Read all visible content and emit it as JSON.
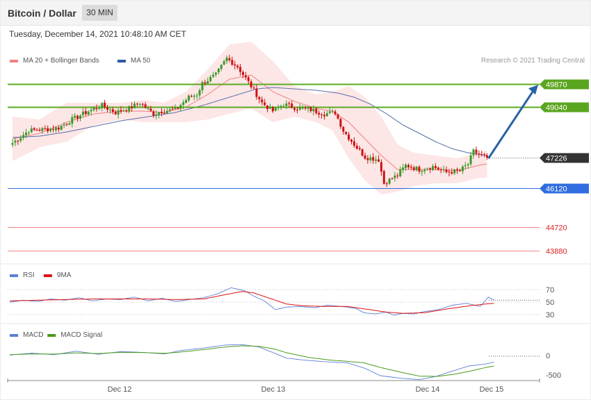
{
  "header": {
    "title": "Bitcoin / Dollar",
    "timeframe": "30 MIN",
    "datetime": "Tuesday, December 14, 2021 10:48:10 AM CET"
  },
  "copyright": "Research © 2021 Trading Central",
  "colors": {
    "up": "#3a9a2a",
    "down": "#cc1111",
    "ma20": "#f08080",
    "ma50": "#5a6ea8",
    "band_fill": "#fde0e0",
    "resistance": "#5aaa1e",
    "current": "#333333",
    "support": "#2f6de0",
    "support_red": "#ee5555",
    "arrow": "#2a62a6",
    "rsi": "#5b7fd6",
    "rsi_ma": "#dd1111",
    "macd": "#5b7fd6",
    "macd_signal": "#4a9a1a"
  },
  "chart_data": [
    {
      "type": "candlestick",
      "legend": [
        {
          "name": "MA 20 + Bollinger Bands",
          "color": "#f08080"
        },
        {
          "name": "MA 50",
          "color": "#2f5aa0"
        }
      ],
      "x_labels": [
        "Dec 12",
        "Dec 13",
        "Dec 14",
        "Dec 15"
      ],
      "ylim": [
        43300,
        51500
      ],
      "levels": [
        {
          "value": 49870,
          "label": "49870",
          "kind": "resistance"
        },
        {
          "value": 49040,
          "label": "49040",
          "kind": "resistance"
        },
        {
          "value": 47226,
          "label": "47226",
          "kind": "current"
        },
        {
          "value": 46120,
          "label": "46120",
          "kind": "support"
        },
        {
          "value": 44720,
          "label": "44720",
          "kind": "support_red"
        },
        {
          "value": 43880,
          "label": "43880",
          "kind": "support_red"
        }
      ],
      "close_anchors": [
        [
          0,
          47750
        ],
        [
          6,
          48200
        ],
        [
          13,
          48250
        ],
        [
          17,
          48300
        ],
        [
          22,
          48600
        ],
        [
          28,
          48900
        ],
        [
          33,
          49100
        ],
        [
          38,
          48850
        ],
        [
          43,
          49000
        ],
        [
          47,
          49200
        ],
        [
          52,
          48800
        ],
        [
          55,
          48900
        ],
        [
          60,
          48950
        ],
        [
          65,
          49400
        ],
        [
          68,
          49500
        ],
        [
          70,
          49900
        ],
        [
          75,
          50200
        ],
        [
          79,
          50800
        ],
        [
          83,
          50500
        ],
        [
          88,
          49800
        ],
        [
          92,
          49200
        ],
        [
          96,
          48900
        ],
        [
          100,
          49150
        ],
        [
          105,
          49000
        ],
        [
          110,
          48950
        ],
        [
          115,
          48800
        ],
        [
          119,
          48850
        ],
        [
          122,
          48200
        ],
        [
          126,
          47700
        ],
        [
          130,
          47250
        ],
        [
          135,
          47150
        ],
        [
          137,
          46300
        ],
        [
          142,
          46600
        ],
        [
          145,
          46950
        ],
        [
          150,
          46800
        ],
        [
          155,
          46900
        ],
        [
          160,
          46700
        ],
        [
          165,
          46750
        ],
        [
          168,
          47000
        ],
        [
          170,
          47450
        ],
        [
          173,
          47300
        ],
        [
          175,
          47226
        ]
      ],
      "bands_ma20": [
        [
          0,
          47900,
          47100,
          48700
        ],
        [
          10,
          48100,
          47600,
          48600
        ],
        [
          20,
          48500,
          47800,
          49200
        ],
        [
          30,
          48800,
          48400,
          49200
        ],
        [
          40,
          48900,
          48600,
          49200
        ],
        [
          48,
          48900,
          48500,
          49300
        ],
        [
          56,
          48850,
          48500,
          49200
        ],
        [
          64,
          49050,
          48500,
          49600
        ],
        [
          72,
          49500,
          48600,
          50400
        ],
        [
          80,
          50050,
          48800,
          51300
        ],
        [
          88,
          50200,
          49000,
          51400
        ],
        [
          96,
          49600,
          48500,
          50700
        ],
        [
          104,
          49250,
          48700,
          49800
        ],
        [
          112,
          49000,
          48500,
          49500
        ],
        [
          118,
          48900,
          48200,
          49600
        ],
        [
          124,
          48500,
          47200,
          49800
        ],
        [
          130,
          47900,
          46400,
          49400
        ],
        [
          136,
          47300,
          45900,
          48700
        ],
        [
          142,
          46800,
          46000,
          47700
        ],
        [
          148,
          46800,
          46200,
          47400
        ],
        [
          156,
          46800,
          46300,
          47300
        ],
        [
          164,
          46750,
          46300,
          47200
        ],
        [
          172,
          46950,
          46500,
          47400
        ],
        [
          175,
          47000,
          46500,
          47500
        ]
      ],
      "ma50": [
        [
          0,
          47950
        ],
        [
          10,
          48000
        ],
        [
          20,
          48150
        ],
        [
          30,
          48350
        ],
        [
          40,
          48550
        ],
        [
          50,
          48700
        ],
        [
          60,
          48850
        ],
        [
          70,
          49100
        ],
        [
          80,
          49400
        ],
        [
          90,
          49700
        ],
        [
          96,
          49750
        ],
        [
          104,
          49700
        ],
        [
          112,
          49650
        ],
        [
          120,
          49550
        ],
        [
          126,
          49400
        ],
        [
          132,
          49150
        ],
        [
          138,
          48800
        ],
        [
          144,
          48400
        ],
        [
          150,
          48100
        ],
        [
          156,
          47800
        ],
        [
          162,
          47550
        ],
        [
          168,
          47400
        ],
        [
          175,
          47300
        ]
      ],
      "forecast_arrow": {
        "from": [
          175,
          47200
        ],
        "to": [
          190,
          49870
        ]
      }
    },
    {
      "type": "line",
      "name": "RSI",
      "legend": [
        {
          "name": "RSI",
          "color": "#5b7fd6"
        },
        {
          "name": "9MA",
          "color": "#dd1111"
        }
      ],
      "y_ticks": [
        70,
        50,
        30
      ],
      "ylim": [
        20,
        80
      ],
      "rsi": [
        [
          0,
          50
        ],
        [
          5,
          53
        ],
        [
          10,
          51
        ],
        [
          15,
          55
        ],
        [
          20,
          53
        ],
        [
          25,
          57
        ],
        [
          30,
          52
        ],
        [
          35,
          55
        ],
        [
          40,
          54
        ],
        [
          45,
          58
        ],
        [
          50,
          52
        ],
        [
          55,
          56
        ],
        [
          60,
          51
        ],
        [
          65,
          54
        ],
        [
          70,
          57
        ],
        [
          75,
          63
        ],
        [
          80,
          73
        ],
        [
          85,
          68
        ],
        [
          88,
          60
        ],
        [
          92,
          52
        ],
        [
          96,
          38
        ],
        [
          100,
          42
        ],
        [
          105,
          43
        ],
        [
          110,
          41
        ],
        [
          115,
          45
        ],
        [
          120,
          43
        ],
        [
          125,
          40
        ],
        [
          128,
          33
        ],
        [
          132,
          31
        ],
        [
          136,
          34
        ],
        [
          139,
          29
        ],
        [
          142,
          32
        ],
        [
          146,
          31
        ],
        [
          150,
          35
        ],
        [
          155,
          38
        ],
        [
          160,
          45
        ],
        [
          165,
          48
        ],
        [
          170,
          43
        ],
        [
          173,
          58
        ],
        [
          175,
          53
        ]
      ],
      "ma9": [
        [
          0,
          52
        ],
        [
          10,
          53
        ],
        [
          20,
          54
        ],
        [
          30,
          55
        ],
        [
          40,
          55
        ],
        [
          50,
          55
        ],
        [
          60,
          54
        ],
        [
          70,
          55
        ],
        [
          78,
          62
        ],
        [
          84,
          67
        ],
        [
          88,
          65
        ],
        [
          94,
          56
        ],
        [
          100,
          47
        ],
        [
          106,
          44
        ],
        [
          114,
          43
        ],
        [
          122,
          43
        ],
        [
          130,
          38
        ],
        [
          136,
          34
        ],
        [
          142,
          32
        ],
        [
          150,
          33
        ],
        [
          158,
          39
        ],
        [
          166,
          44
        ],
        [
          172,
          47
        ],
        [
          175,
          48
        ]
      ]
    },
    {
      "type": "line",
      "name": "MACD",
      "legend": [
        {
          "name": "MACD",
          "color": "#5b7fd6"
        },
        {
          "name": "MACD Signal",
          "color": "#4a9a1a"
        }
      ],
      "y_ticks": [
        0,
        -500
      ],
      "ylim": [
        -650,
        450
      ],
      "macd": [
        [
          0,
          30
        ],
        [
          8,
          80
        ],
        [
          16,
          40
        ],
        [
          24,
          130
        ],
        [
          32,
          50
        ],
        [
          40,
          120
        ],
        [
          48,
          100
        ],
        [
          56,
          60
        ],
        [
          62,
          150
        ],
        [
          70,
          210
        ],
        [
          78,
          290
        ],
        [
          84,
          300
        ],
        [
          90,
          240
        ],
        [
          96,
          70
        ],
        [
          100,
          -50
        ],
        [
          108,
          -110
        ],
        [
          116,
          -150
        ],
        [
          122,
          -170
        ],
        [
          128,
          -300
        ],
        [
          134,
          -500
        ],
        [
          142,
          -570
        ],
        [
          148,
          -600
        ],
        [
          154,
          -520
        ],
        [
          160,
          -380
        ],
        [
          166,
          -250
        ],
        [
          172,
          -200
        ],
        [
          175,
          -150
        ]
      ],
      "signal": [
        [
          0,
          40
        ],
        [
          8,
          60
        ],
        [
          16,
          55
        ],
        [
          24,
          85
        ],
        [
          32,
          70
        ],
        [
          40,
          100
        ],
        [
          48,
          95
        ],
        [
          56,
          75
        ],
        [
          62,
          110
        ],
        [
          70,
          170
        ],
        [
          78,
          240
        ],
        [
          84,
          270
        ],
        [
          90,
          255
        ],
        [
          96,
          180
        ],
        [
          100,
          90
        ],
        [
          108,
          -30
        ],
        [
          116,
          -100
        ],
        [
          122,
          -130
        ],
        [
          128,
          -170
        ],
        [
          134,
          -290
        ],
        [
          142,
          -420
        ],
        [
          148,
          -510
        ],
        [
          154,
          -520
        ],
        [
          160,
          -470
        ],
        [
          166,
          -390
        ],
        [
          172,
          -290
        ],
        [
          175,
          -250
        ]
      ]
    }
  ]
}
